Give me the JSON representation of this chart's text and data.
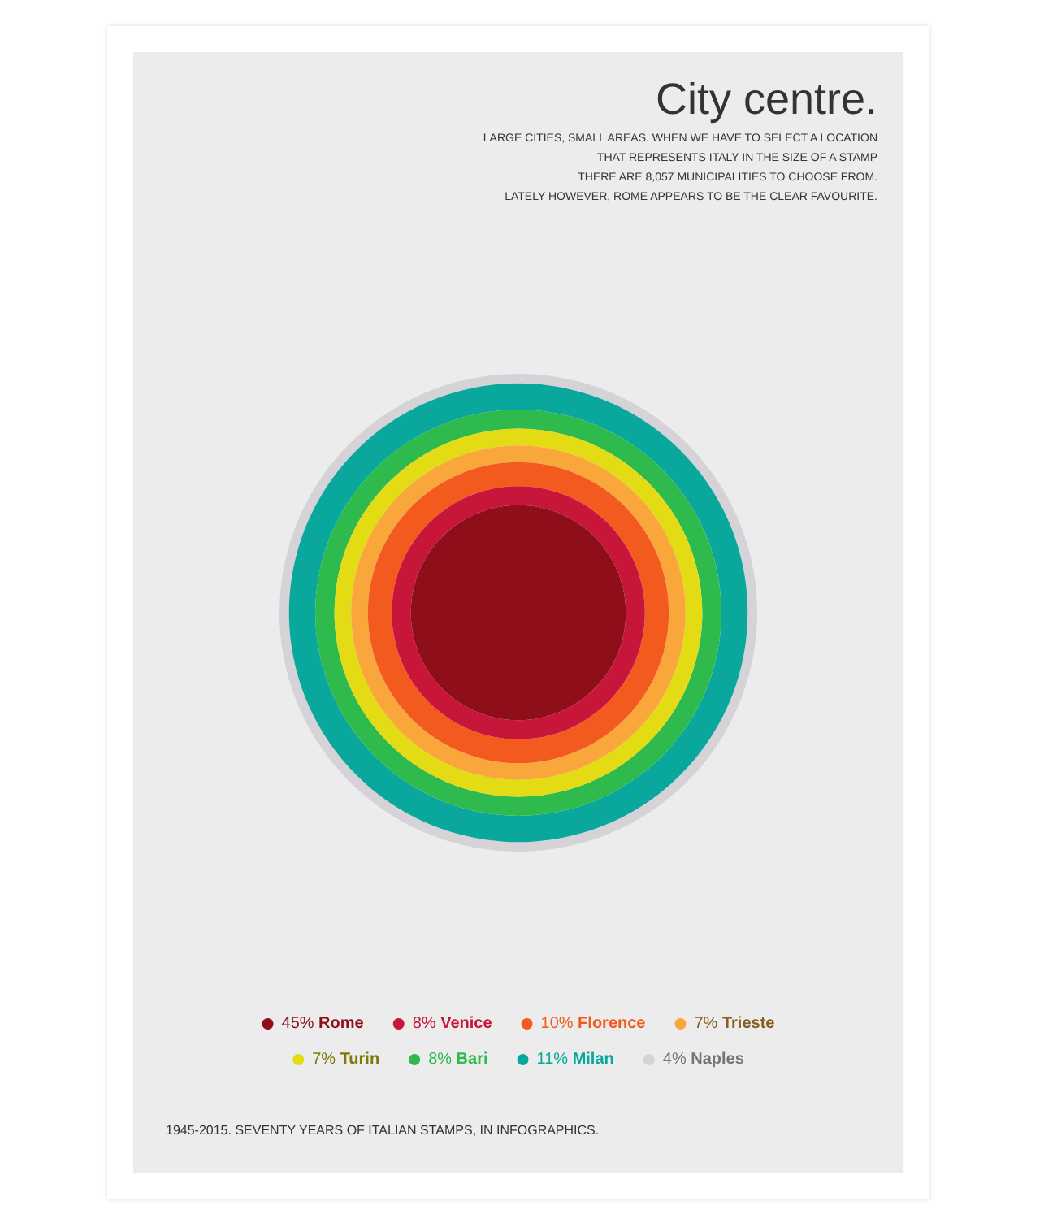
{
  "chart_data": {
    "type": "other",
    "title": "City centre.",
    "subtitle": "LARGE CITIES, SMALL AREAS. WHEN WE HAVE TO SELECT A LOCATION\nTHAT REPRESENTS ITALY IN THE SIZE OF A STAMP\nTHERE ARE 8,057 MUNICIPALITIES TO CHOOSE FROM.\nLATELY HOWEVER, ROME APPEARS TO BE THE CLEAR FAVOURITE.",
    "categories": [
      "Rome",
      "Venice",
      "Florence",
      "Trieste",
      "Turin",
      "Bari",
      "Milan",
      "Naples"
    ],
    "values": [
      45,
      8,
      10,
      7,
      7,
      8,
      11,
      4
    ],
    "value_labels": [
      "45%",
      "8%",
      "10%",
      "7%",
      "7%",
      "8%",
      "11%",
      "4%"
    ],
    "colors": [
      "#8e0f1a",
      "#c8163a",
      "#f25a1e",
      "#f9a73a",
      "#e3dc14",
      "#2fba4e",
      "#0aa89c",
      "#d5d3d8"
    ],
    "annotations": [
      "1945-2015. SEVENTY YEARS OF ITALIAN STAMPS, IN INFOGRAPHICS."
    ]
  }
}
